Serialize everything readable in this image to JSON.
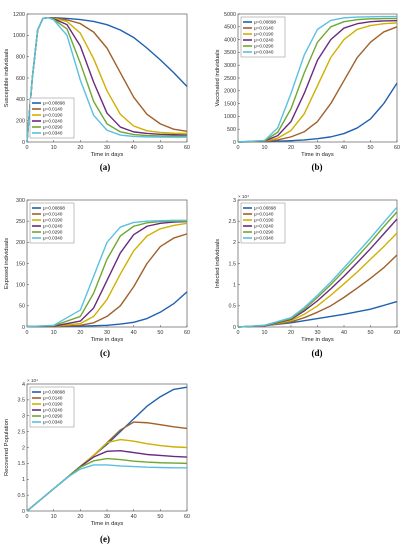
{
  "colors": [
    "#2060b0",
    "#a0602a",
    "#d0b000",
    "#6a2a80",
    "#70a830",
    "#5bc0e0"
  ],
  "legend_entries": [
    "μ=0.00898",
    "μ=0.0140",
    "μ=0.0190",
    "μ=0.0240",
    "μ=0.0290",
    "μ=0.0340"
  ],
  "chart_data": [
    {
      "type": "line",
      "panel_label": "(a)",
      "xlabel": "Time in days",
      "ylabel": "Susceptible individuals",
      "xlim": [
        0,
        60
      ],
      "ylim": [
        0,
        1200
      ],
      "xticks": [
        0,
        10,
        20,
        30,
        40,
        50,
        60
      ],
      "yticks": [
        0,
        200,
        400,
        600,
        800,
        1000,
        1200
      ],
      "ytick_labels": [
        "0",
        "200",
        "400",
        "600",
        "800",
        "1000",
        "1200"
      ],
      "exponent_label": "",
      "legend_position": "bottom-left",
      "series": [
        {
          "name": "μ=0.00898",
          "x": [
            0,
            2,
            4,
            6,
            8,
            10,
            15,
            20,
            25,
            30,
            35,
            40,
            45,
            50,
            55,
            60
          ],
          "y": [
            0,
            600,
            1050,
            1160,
            1165,
            1165,
            1158,
            1148,
            1130,
            1100,
            1050,
            980,
            880,
            770,
            650,
            520
          ]
        },
        {
          "name": "μ=0.0140",
          "x": [
            0,
            2,
            4,
            6,
            8,
            10,
            15,
            20,
            25,
            30,
            35,
            40,
            45,
            50,
            55,
            60
          ],
          "y": [
            0,
            600,
            1050,
            1160,
            1165,
            1162,
            1145,
            1110,
            1030,
            880,
            650,
            420,
            260,
            170,
            120,
            100
          ]
        },
        {
          "name": "μ=0.0190",
          "x": [
            0,
            2,
            4,
            6,
            8,
            10,
            15,
            20,
            25,
            30,
            35,
            40,
            45,
            50,
            55,
            60
          ],
          "y": [
            0,
            600,
            1050,
            1160,
            1165,
            1160,
            1130,
            1020,
            780,
            480,
            260,
            150,
            105,
            90,
            82,
            80
          ]
        },
        {
          "name": "μ=0.0240",
          "x": [
            0,
            2,
            4,
            6,
            8,
            10,
            15,
            20,
            25,
            30,
            35,
            40,
            45,
            50,
            55,
            60
          ],
          "y": [
            0,
            600,
            1050,
            1160,
            1165,
            1155,
            1100,
            900,
            560,
            270,
            140,
            95,
            80,
            72,
            68,
            65
          ]
        },
        {
          "name": "μ=0.0290",
          "x": [
            0,
            2,
            4,
            6,
            8,
            10,
            15,
            20,
            25,
            30,
            35,
            40,
            45,
            50,
            55,
            60
          ],
          "y": [
            0,
            600,
            1050,
            1160,
            1165,
            1150,
            1060,
            740,
            380,
            170,
            95,
            70,
            60,
            57,
            55,
            55
          ]
        },
        {
          "name": "μ=0.0340",
          "x": [
            0,
            2,
            4,
            6,
            8,
            10,
            15,
            20,
            25,
            30,
            35,
            40,
            45,
            50,
            55,
            60
          ],
          "y": [
            0,
            600,
            1050,
            1160,
            1165,
            1145,
            1000,
            580,
            250,
            110,
            65,
            52,
            48,
            46,
            45,
            45
          ]
        }
      ]
    },
    {
      "type": "line",
      "panel_label": "(b)",
      "xlabel": "Time in days",
      "ylabel": "Vaccinated individuals",
      "xlim": [
        0,
        60
      ],
      "ylim": [
        0,
        5000
      ],
      "xticks": [
        0,
        10,
        20,
        30,
        40,
        50,
        60
      ],
      "yticks": [
        0,
        500,
        1000,
        1500,
        2000,
        2500,
        3000,
        3500,
        4000,
        4500,
        5000
      ],
      "ytick_labels": [
        "0",
        "500",
        "1000",
        "1500",
        "2000",
        "2500",
        "3000",
        "3500",
        "4000",
        "4500",
        "5000"
      ],
      "exponent_label": "",
      "legend_position": "top-left",
      "series": [
        {
          "name": "μ=0.00898",
          "x": [
            0,
            10,
            15,
            20,
            25,
            30,
            35,
            40,
            45,
            50,
            55,
            60
          ],
          "y": [
            0,
            10,
            30,
            50,
            80,
            130,
            200,
            330,
            550,
            900,
            1500,
            2300
          ]
        },
        {
          "name": "μ=0.0140",
          "x": [
            0,
            10,
            15,
            20,
            25,
            30,
            35,
            40,
            45,
            50,
            55,
            60
          ],
          "y": [
            0,
            20,
            80,
            200,
            400,
            800,
            1500,
            2400,
            3300,
            3900,
            4300,
            4500
          ]
        },
        {
          "name": "μ=0.0190",
          "x": [
            0,
            10,
            15,
            20,
            25,
            30,
            35,
            40,
            45,
            50,
            55,
            60
          ],
          "y": [
            0,
            30,
            150,
            450,
            1100,
            2200,
            3300,
            4000,
            4400,
            4550,
            4620,
            4650
          ]
        },
        {
          "name": "μ=0.0240",
          "x": [
            0,
            10,
            15,
            20,
            25,
            30,
            35,
            40,
            45,
            50,
            55,
            60
          ],
          "y": [
            0,
            40,
            250,
            800,
            1900,
            3200,
            4000,
            4450,
            4620,
            4700,
            4730,
            4740
          ]
        },
        {
          "name": "μ=0.0290",
          "x": [
            0,
            10,
            15,
            20,
            25,
            30,
            35,
            40,
            45,
            50,
            55,
            60
          ],
          "y": [
            0,
            50,
            380,
            1300,
            2700,
            3900,
            4500,
            4700,
            4780,
            4810,
            4820,
            4820
          ]
        },
        {
          "name": "μ=0.0340",
          "x": [
            0,
            10,
            15,
            20,
            25,
            30,
            35,
            40,
            45,
            50,
            55,
            60
          ],
          "y": [
            0,
            60,
            550,
            1900,
            3400,
            4400,
            4750,
            4850,
            4880,
            4890,
            4900,
            4900
          ]
        }
      ]
    },
    {
      "type": "line",
      "panel_label": "(c)",
      "xlabel": "Time in days",
      "ylabel": "Exposed individuals",
      "xlim": [
        0,
        60
      ],
      "ylim": [
        0,
        300
      ],
      "xticks": [
        0,
        10,
        20,
        30,
        40,
        50,
        60
      ],
      "yticks": [
        0,
        50,
        100,
        150,
        200,
        250,
        300
      ],
      "ytick_labels": [
        "0",
        "50",
        "100",
        "150",
        "200",
        "250",
        "300"
      ],
      "exponent_label": "",
      "legend_position": "top-left",
      "series": [
        {
          "name": "μ=0.00898",
          "x": [
            0,
            10,
            20,
            30,
            35,
            40,
            45,
            50,
            55,
            60
          ],
          "y": [
            1,
            1,
            2,
            4,
            7,
            11,
            20,
            35,
            55,
            83
          ]
        },
        {
          "name": "μ=0.0140",
          "x": [
            0,
            10,
            20,
            25,
            30,
            35,
            40,
            45,
            50,
            55,
            60
          ],
          "y": [
            1,
            1,
            4,
            10,
            25,
            50,
            95,
            150,
            190,
            210,
            220
          ]
        },
        {
          "name": "μ=0.0190",
          "x": [
            0,
            10,
            20,
            25,
            30,
            35,
            40,
            45,
            50,
            55,
            60
          ],
          "y": [
            1,
            2,
            8,
            25,
            65,
            125,
            180,
            215,
            232,
            240,
            245
          ]
        },
        {
          "name": "μ=0.0240",
          "x": [
            0,
            10,
            20,
            25,
            30,
            35,
            40,
            45,
            50,
            55,
            60
          ],
          "y": [
            1,
            2,
            14,
            45,
            110,
            175,
            218,
            238,
            245,
            248,
            249
          ]
        },
        {
          "name": "μ=0.0290",
          "x": [
            0,
            10,
            20,
            25,
            30,
            35,
            40,
            45,
            50,
            55,
            60
          ],
          "y": [
            1,
            3,
            25,
            80,
            160,
            215,
            238,
            246,
            249,
            250,
            250
          ]
        },
        {
          "name": "μ=0.0340",
          "x": [
            0,
            10,
            20,
            25,
            30,
            35,
            40,
            45,
            50,
            55,
            60
          ],
          "y": [
            1,
            4,
            40,
            120,
            200,
            236,
            247,
            250,
            251,
            252,
            252
          ]
        }
      ]
    },
    {
      "type": "line",
      "panel_label": "(d)",
      "xlabel": "Time in days",
      "ylabel": "Infected individuals",
      "xlim": [
        0,
        60
      ],
      "ylim": [
        0,
        3
      ],
      "xticks": [
        0,
        10,
        20,
        30,
        40,
        50,
        60
      ],
      "yticks": [
        0,
        0.5,
        1,
        1.5,
        2,
        2.5,
        3
      ],
      "ytick_labels": [
        "0",
        "0.5",
        "1",
        "1.5",
        "2",
        "2.5",
        "3"
      ],
      "exponent_label": "× 10⁴",
      "legend_position": "top-left",
      "series": [
        {
          "name": "μ=0.00898",
          "x": [
            0,
            10,
            20,
            30,
            40,
            50,
            60
          ],
          "y": [
            0,
            0.03,
            0.1,
            0.2,
            0.3,
            0.42,
            0.6
          ]
        },
        {
          "name": "μ=0.0140",
          "x": [
            0,
            10,
            20,
            25,
            30,
            35,
            40,
            45,
            50,
            55,
            60
          ],
          "y": [
            0,
            0.03,
            0.12,
            0.22,
            0.35,
            0.5,
            0.7,
            0.92,
            1.15,
            1.4,
            1.7
          ]
        },
        {
          "name": "μ=0.0190",
          "x": [
            0,
            10,
            20,
            25,
            30,
            35,
            40,
            45,
            50,
            55,
            60
          ],
          "y": [
            0,
            0.03,
            0.15,
            0.3,
            0.5,
            0.75,
            1.02,
            1.3,
            1.6,
            1.9,
            2.22
          ]
        },
        {
          "name": "μ=0.0240",
          "x": [
            0,
            10,
            20,
            25,
            30,
            35,
            40,
            45,
            50,
            55,
            60
          ],
          "y": [
            0,
            0.03,
            0.18,
            0.38,
            0.62,
            0.9,
            1.2,
            1.52,
            1.85,
            2.2,
            2.55
          ]
        },
        {
          "name": "μ=0.0290",
          "x": [
            0,
            10,
            20,
            25,
            30,
            35,
            40,
            45,
            50,
            55,
            60
          ],
          "y": [
            0,
            0.04,
            0.2,
            0.42,
            0.7,
            1.0,
            1.33,
            1.66,
            2.0,
            2.37,
            2.72
          ]
        },
        {
          "name": "μ=0.0340",
          "x": [
            0,
            10,
            20,
            25,
            30,
            35,
            40,
            45,
            50,
            55,
            60
          ],
          "y": [
            0,
            0.04,
            0.22,
            0.46,
            0.75,
            1.06,
            1.4,
            1.75,
            2.1,
            2.47,
            2.83
          ]
        }
      ]
    },
    {
      "type": "line",
      "panel_label": "(e)",
      "xlabel": "Time in days",
      "ylabel": "Recovered Population",
      "xlim": [
        0,
        60
      ],
      "ylim": [
        0,
        4
      ],
      "xticks": [
        0,
        10,
        20,
        30,
        40,
        50,
        60
      ],
      "yticks": [
        0,
        0.5,
        1,
        1.5,
        2,
        2.5,
        3,
        3.5,
        4
      ],
      "ytick_labels": [
        "0",
        "0.5",
        "1",
        "1.5",
        "2",
        "2.5",
        "3",
        "3.5",
        "4"
      ],
      "exponent_label": "× 10⁴",
      "legend_position": "top-left",
      "series": [
        {
          "name": "μ=0.00898",
          "x": [
            0,
            5,
            10,
            15,
            20,
            25,
            30,
            35,
            40,
            45,
            50,
            55,
            60
          ],
          "y": [
            0,
            0.35,
            0.7,
            1.05,
            1.4,
            1.75,
            2.1,
            2.5,
            2.9,
            3.3,
            3.6,
            3.83,
            3.9
          ]
        },
        {
          "name": "μ=0.0140",
          "x": [
            0,
            5,
            10,
            15,
            20,
            25,
            30,
            35,
            40,
            45,
            50,
            55,
            60
          ],
          "y": [
            0,
            0.35,
            0.7,
            1.05,
            1.4,
            1.75,
            2.15,
            2.55,
            2.8,
            2.78,
            2.72,
            2.65,
            2.6
          ]
        },
        {
          "name": "μ=0.0190",
          "x": [
            0,
            5,
            10,
            15,
            20,
            25,
            30,
            35,
            40,
            45,
            50,
            55,
            60
          ],
          "y": [
            0,
            0.35,
            0.7,
            1.05,
            1.4,
            1.75,
            2.15,
            2.25,
            2.2,
            2.12,
            2.06,
            2.02,
            2.0
          ]
        },
        {
          "name": "μ=0.0240",
          "x": [
            0,
            5,
            10,
            15,
            20,
            25,
            30,
            35,
            40,
            45,
            50,
            55,
            60
          ],
          "y": [
            0,
            0.35,
            0.7,
            1.05,
            1.4,
            1.7,
            1.88,
            1.9,
            1.84,
            1.78,
            1.75,
            1.72,
            1.7
          ]
        },
        {
          "name": "μ=0.0290",
          "x": [
            0,
            5,
            10,
            15,
            20,
            25,
            30,
            35,
            40,
            45,
            50,
            55,
            60
          ],
          "y": [
            0,
            0.35,
            0.7,
            1.05,
            1.38,
            1.58,
            1.65,
            1.62,
            1.57,
            1.54,
            1.52,
            1.51,
            1.5
          ]
        },
        {
          "name": "μ=0.0340",
          "x": [
            0,
            5,
            10,
            15,
            20,
            25,
            30,
            35,
            40,
            45,
            50,
            55,
            60
          ],
          "y": [
            0,
            0.35,
            0.7,
            1.05,
            1.32,
            1.45,
            1.45,
            1.42,
            1.4,
            1.38,
            1.37,
            1.36,
            1.36
          ]
        }
      ]
    }
  ]
}
